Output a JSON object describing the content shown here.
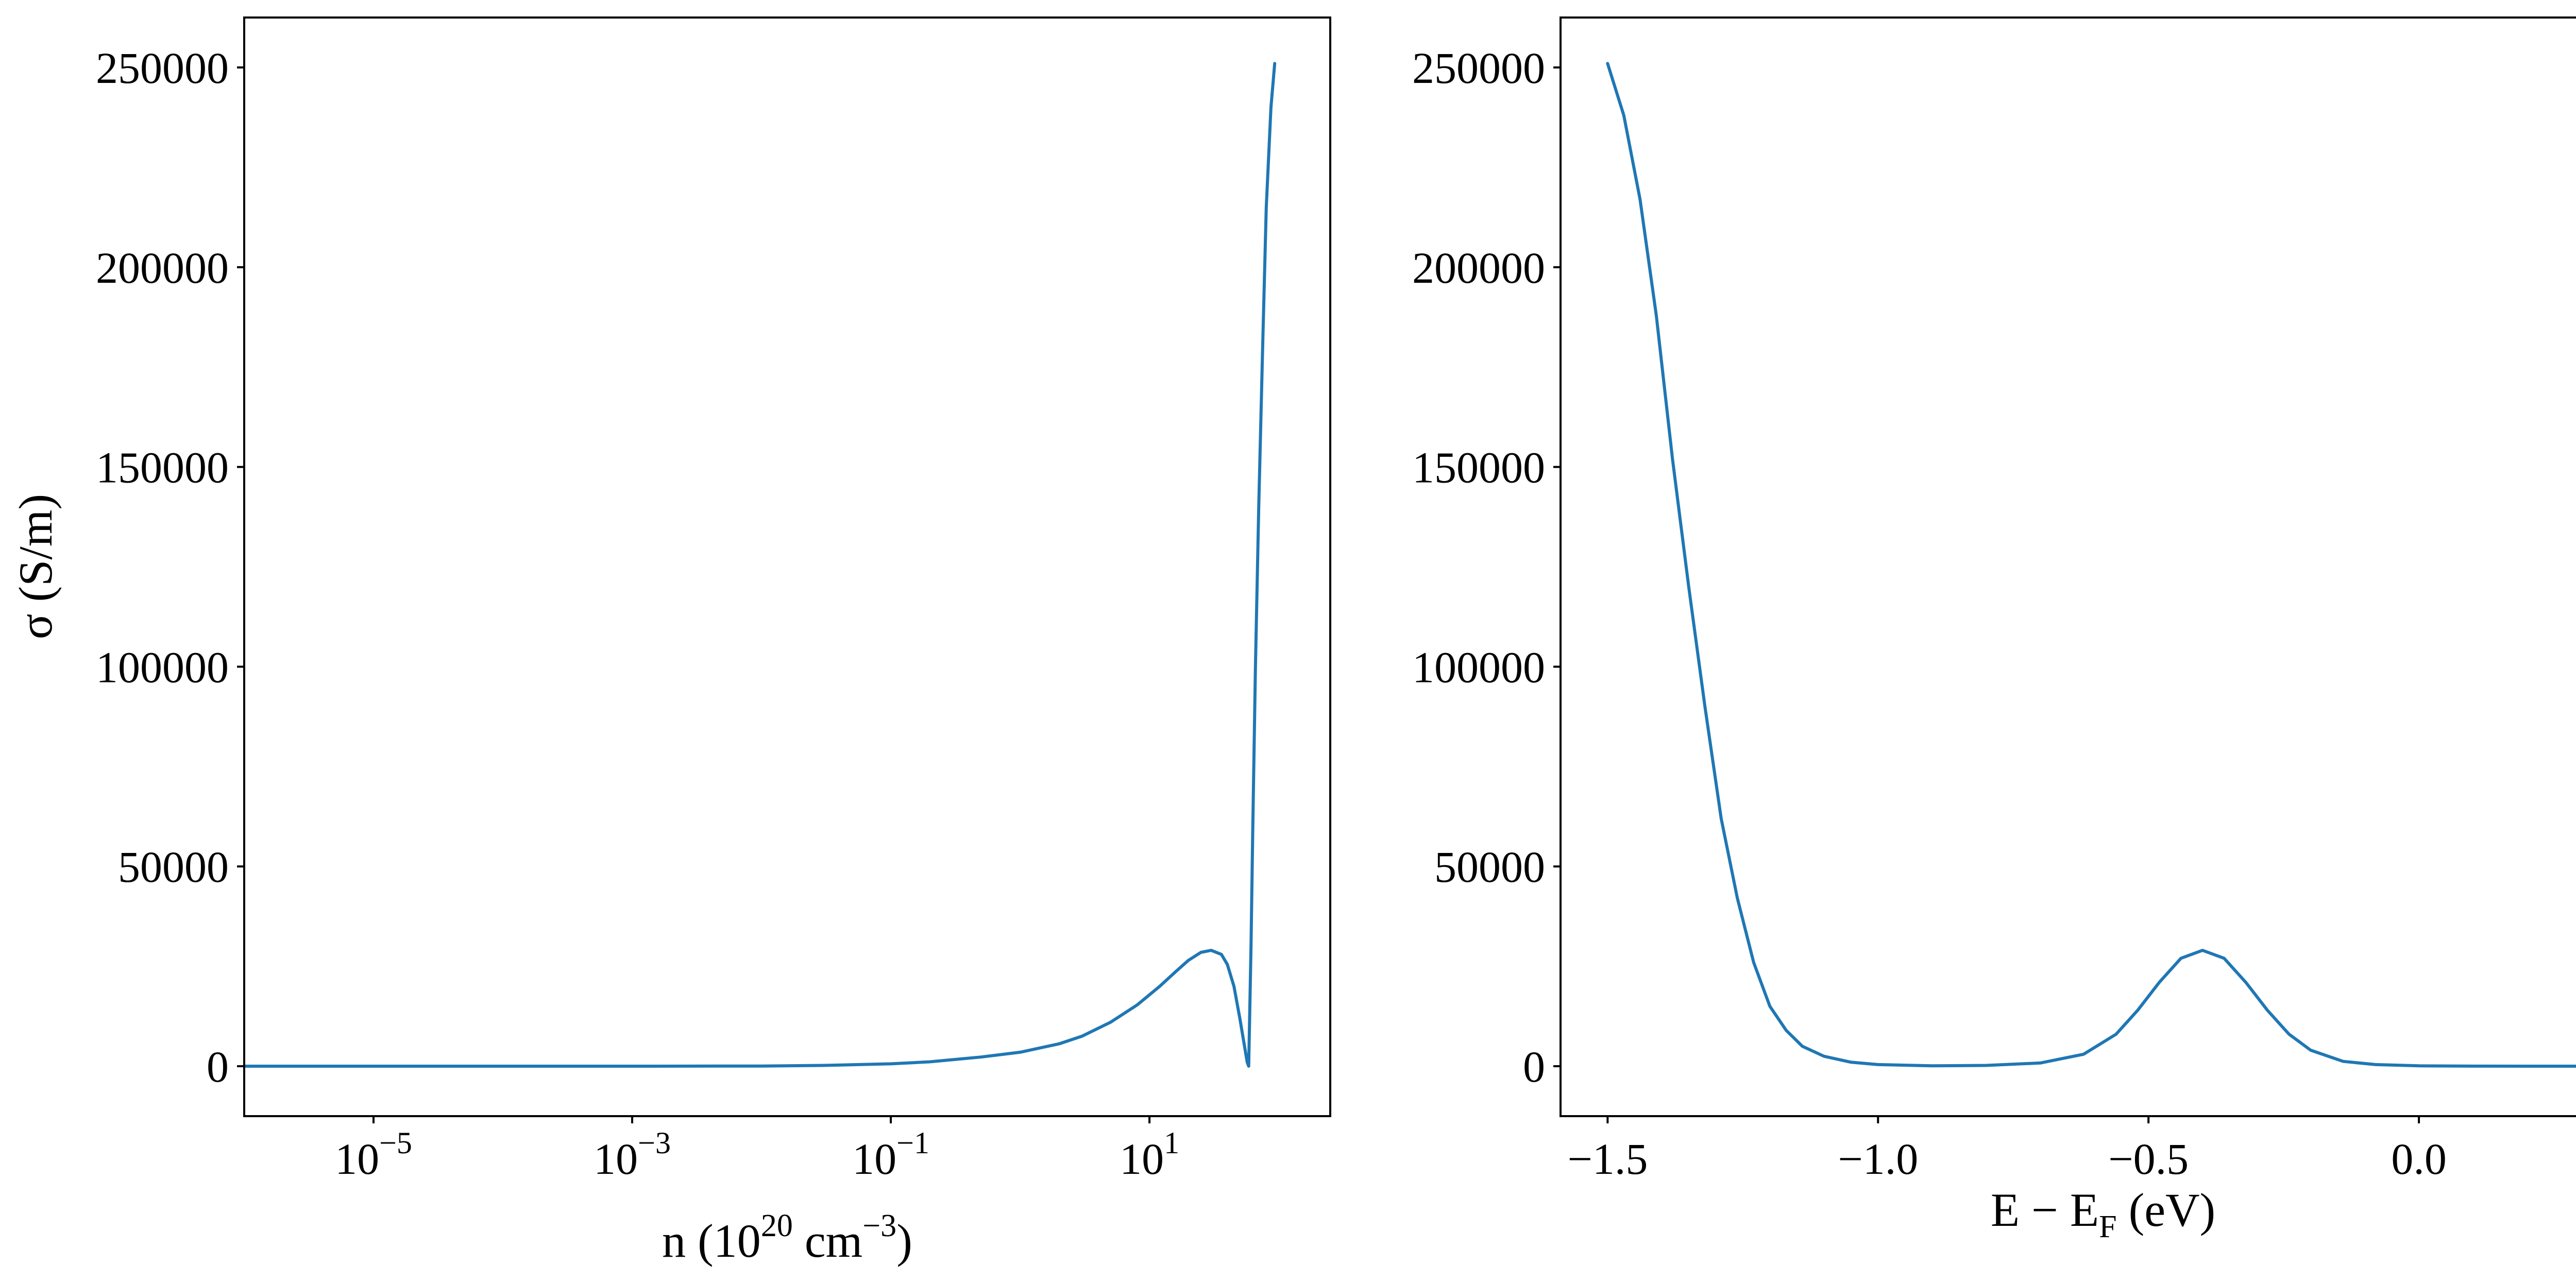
{
  "colors": {
    "series": "#1f77b4",
    "axes": "#000000",
    "background": "#ffffff"
  },
  "chart_data": [
    {
      "type": "line",
      "xscale": "log",
      "xlabel_parts": [
        "n (10",
        "20",
        " cm",
        "−3",
        ")"
      ],
      "ylabel": "σ (S/m)",
      "xlim": [
        1e-06,
        250
      ],
      "ylim": [
        -12500,
        262500
      ],
      "yticks": [
        0,
        50000,
        100000,
        150000,
        200000,
        250000
      ],
      "ytick_labels": [
        "0",
        "50000",
        "100000",
        "150000",
        "200000",
        "250000"
      ],
      "xticks": [
        1e-05,
        0.001,
        0.1,
        10
      ],
      "xtick_labels": [
        {
          "base": "10",
          "exp": "−5"
        },
        {
          "base": "10",
          "exp": "−3"
        },
        {
          "base": "10",
          "exp": "−1"
        },
        {
          "base": "10",
          "exp": "1"
        }
      ],
      "series": [
        {
          "x": [
            1e-06,
            0.0001,
            0.001,
            0.01,
            0.03,
            0.1,
            0.2,
            0.5,
            1,
            2,
            3,
            5,
            8,
            12,
            16,
            20,
            25,
            30,
            36,
            40,
            45,
            50,
            55,
            57,
            58.5,
            61,
            63,
            66,
            70,
            75,
            80,
            87,
            93
          ],
          "y": [
            0,
            0,
            0,
            50,
            200,
            600,
            1100,
            2300,
            3500,
            5600,
            7500,
            11000,
            15300,
            20000,
            23700,
            26500,
            28500,
            29000,
            28000,
            25500,
            20000,
            12000,
            4000,
            1000,
            0,
            30000,
            60000,
            100000,
            140000,
            180000,
            215000,
            240000,
            251000
          ]
        }
      ]
    },
    {
      "type": "line",
      "xlabel_parts": [
        "E − E",
        "F",
        " (eV)"
      ],
      "ylabel": "",
      "xlim": [
        -1.587,
        0.42
      ],
      "ylim": [
        -12500,
        262500
      ],
      "yticks": [
        0,
        50000,
        100000,
        150000,
        200000,
        250000
      ],
      "ytick_labels": [
        "0",
        "50000",
        "100000",
        "150000",
        "200000",
        "250000"
      ],
      "xticks": [
        -1.5,
        -1.0,
        -0.5,
        0.0
      ],
      "xtick_labels": [
        "−1.5",
        "−1.0",
        "−0.5",
        "0.0"
      ],
      "series": [
        {
          "x": [
            -1.5,
            -1.47,
            -1.44,
            -1.41,
            -1.38,
            -1.35,
            -1.32,
            -1.29,
            -1.26,
            -1.23,
            -1.2,
            -1.17,
            -1.14,
            -1.1,
            -1.05,
            -1.0,
            -0.9,
            -0.8,
            -0.7,
            -0.62,
            -0.56,
            -0.52,
            -0.48,
            -0.44,
            -0.4,
            -0.36,
            -0.32,
            -0.28,
            -0.24,
            -0.2,
            -0.14,
            -0.08,
            0.0,
            0.1,
            0.2,
            0.34
          ],
          "y": [
            251000,
            238000,
            217000,
            188000,
            152000,
            120000,
            90000,
            62000,
            42000,
            26000,
            15000,
            9000,
            5000,
            2500,
            1000,
            400,
            100,
            200,
            800,
            3000,
            8000,
            14000,
            21000,
            27000,
            29000,
            27000,
            21000,
            14000,
            8000,
            4000,
            1200,
            400,
            100,
            20,
            0,
            0
          ]
        }
      ]
    }
  ]
}
